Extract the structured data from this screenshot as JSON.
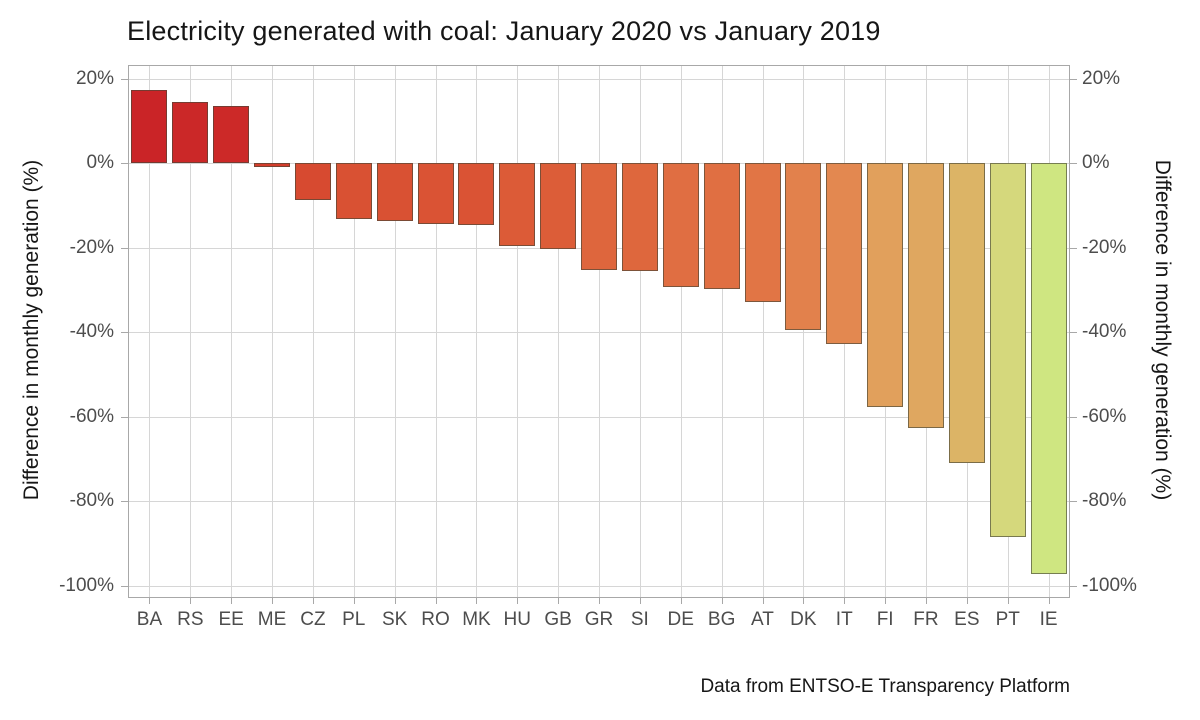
{
  "chart_data": {
    "type": "bar",
    "title": "Electricity generated with coal: January 2020 vs January 2019",
    "ylabel_left": "Difference in monthly generation (%)",
    "ylabel_right": "Difference in monthly generation (%)",
    "caption": "Data from ENTSO-E Transparency Platform",
    "categories": [
      "BA",
      "RS",
      "EE",
      "ME",
      "CZ",
      "PL",
      "SK",
      "RO",
      "MK",
      "HU",
      "GB",
      "GR",
      "SI",
      "DE",
      "BG",
      "AT",
      "DK",
      "IT",
      "FI",
      "FR",
      "ES",
      "PT",
      "IE"
    ],
    "values": [
      17.4,
      14.4,
      13.5,
      -1.0,
      -8.8,
      -13.3,
      -13.6,
      -14.5,
      -14.6,
      -19.5,
      -20.4,
      -25.2,
      -25.6,
      -29.3,
      -29.9,
      -32.9,
      -39.5,
      -42.9,
      -57.8,
      -62.6,
      -70.9,
      -88.5,
      -97.2
    ],
    "bar_colors": [
      "#ca2427",
      "#cb2828",
      "#cc2928",
      "#d33d2c",
      "#d74a30",
      "#d95133",
      "#d95133",
      "#da5334",
      "#da5334",
      "#dc5b37",
      "#dc5d38",
      "#de663d",
      "#de673d",
      "#e06e42",
      "#e06f42",
      "#e17545",
      "#e2814c",
      "#e38850",
      "#e1a05c",
      "#dfa760",
      "#dcb466",
      "#d5d87c",
      "#cfe681"
    ],
    "yticks": [
      20,
      0,
      -20,
      -40,
      -60,
      -80,
      -100
    ],
    "ytick_labels": [
      "20%",
      "0%",
      "-20%",
      "-40%",
      "-60%",
      "-80%",
      "-100%"
    ],
    "ylim_top": 23,
    "ylim_bottom": -102.7,
    "grid": true,
    "legend": "none",
    "colors": {
      "background": "#ffffff",
      "grid": "#d6d6d6",
      "panel_border": "#a8a8a8",
      "tick": "#a8a8a8",
      "tick_label": "#4d4d4d",
      "title": "#161616",
      "axis_title": "#161616",
      "caption": "#161616",
      "bar_border": "#464637"
    }
  }
}
